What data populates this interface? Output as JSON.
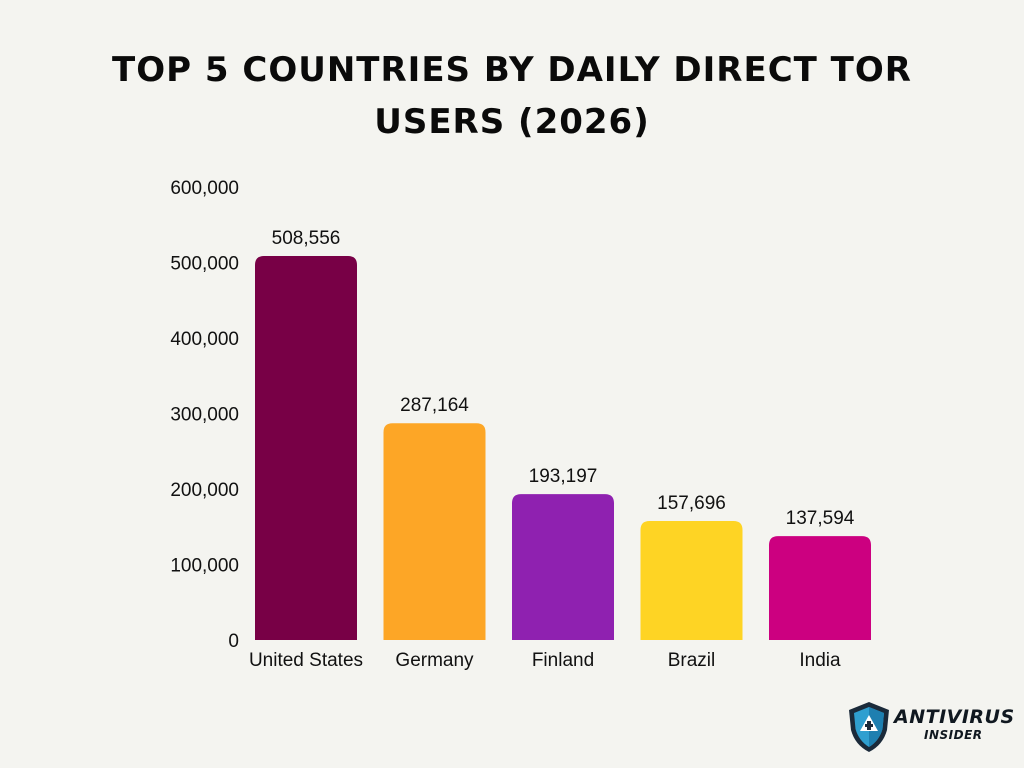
{
  "title": "TOP 5 COUNTRIES BY DAILY DIRECT TOR USERS (2026)",
  "logo": {
    "word1": "ANTIVIRUS",
    "word2": "INSIDER",
    "icon": "shield-icon"
  },
  "chart_data": {
    "type": "bar",
    "title": "TOP 5 COUNTRIES BY DAILY DIRECT TOR USERS (2026)",
    "xlabel": "",
    "ylabel": "",
    "categories": [
      "United States",
      "Germany",
      "Finland",
      "Brazil",
      "India"
    ],
    "values": [
      508556,
      287164,
      193197,
      157696,
      137594
    ],
    "value_labels": [
      "508,556",
      "287,164",
      "193,197",
      "157,696",
      "137,594"
    ],
    "colors": [
      "#780046",
      "#fda626",
      "#8f21b0",
      "#fed424",
      "#cc0080"
    ],
    "ylim": [
      0,
      600000
    ],
    "yticks": [
      0,
      100000,
      200000,
      300000,
      400000,
      500000,
      600000
    ],
    "ytick_labels": [
      "0",
      "100,000",
      "200,000",
      "300,000",
      "400,000",
      "500,000",
      "600,000"
    ],
    "grid": false,
    "legend": "none"
  }
}
